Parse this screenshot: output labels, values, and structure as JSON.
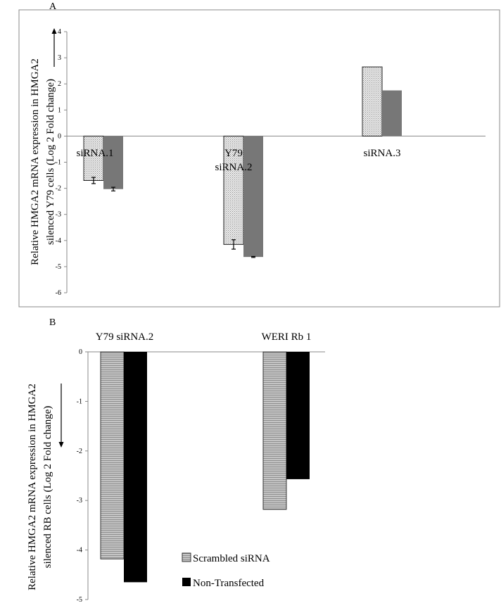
{
  "chart_data": [
    {
      "type": "bar",
      "panel_label": "A",
      "categories": [
        "siRNA.1",
        "Y79 siRNA.2",
        "siRNA.3"
      ],
      "series": [
        {
          "values": [
            -1.7,
            -4.15,
            2.65
          ],
          "errors": [
            0.12,
            0.18,
            null
          ],
          "color": "#e4e4e4",
          "pattern": "dotted"
        },
        {
          "values": [
            -2.03,
            -4.63,
            1.75
          ],
          "errors": [
            0.07,
            0.02,
            null
          ],
          "color": "#777777",
          "pattern": "solid"
        }
      ],
      "ylabel_lines": [
        "Relative HMGA2 mRNA expression in HMGA2",
        "silenced  Y79 cells (Log 2  Fold change)"
      ],
      "ylim": [
        -6,
        4
      ],
      "yticks": [
        "-6",
        "-5",
        "-4",
        "-3",
        "-2",
        "-1",
        "0",
        "1",
        "2",
        "3",
        "4"
      ],
      "category_label_lines": [
        [
          "siRNA.1"
        ],
        [
          "Y79",
          "siRNA.2"
        ],
        [
          "siRNA.3"
        ]
      ],
      "arrow_direction": "up"
    },
    {
      "type": "bar",
      "panel_label": "B",
      "categories": [
        "Y79 siRNA.2",
        "WERI Rb 1"
      ],
      "series": [
        {
          "name": "Scrambled siRNA",
          "values": [
            -4.18,
            -3.18
          ],
          "color": "#bdbdbd",
          "pattern": "striped"
        },
        {
          "name": "Non-Transfected",
          "values": [
            -4.65,
            -2.57
          ],
          "color": "#000000",
          "pattern": "solid"
        }
      ],
      "ylabel_lines": [
        "Relative HMGA2  mRNA expression in HMGA2",
        "silenced RB cells  (Log 2  Fold  change)"
      ],
      "ylim": [
        -5,
        0
      ],
      "yticks": [
        "-5",
        "-4",
        "-3",
        "-2",
        "-1",
        "0"
      ],
      "legend_position": "bottom-center",
      "arrow_direction": "down"
    }
  ]
}
